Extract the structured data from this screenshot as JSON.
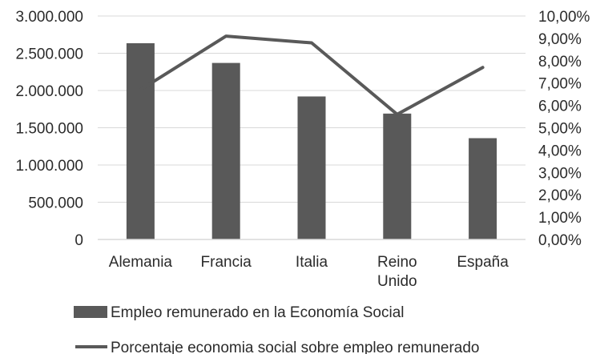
{
  "chart_data": {
    "type": "bar",
    "categories": [
      "Alemania",
      "Francia",
      "Italia",
      "Reino\nUnido",
      "España"
    ],
    "series": [
      {
        "name": "Empleo remunerado en la Economía Social",
        "type": "bar",
        "axis": "left",
        "values": [
          2635000,
          2370000,
          1920000,
          1690000,
          1360000
        ]
      },
      {
        "name": "Porcentaje economia social sobre empleo remunerado",
        "type": "line",
        "axis": "right",
        "values": [
          6.7,
          9.1,
          8.8,
          5.6,
          7.7
        ]
      }
    ],
    "y_left": {
      "lim": [
        0,
        3000000
      ],
      "ticks": [
        "0",
        "500.000",
        "1.000.000",
        "1.500.000",
        "2.000.000",
        "2.500.000",
        "3.000.000"
      ]
    },
    "y_right": {
      "lim": [
        0,
        10
      ],
      "ticks": [
        "0,00%",
        "1,00%",
        "2,00%",
        "3,00%",
        "4,00%",
        "5,00%",
        "6,00%",
        "7,00%",
        "8,00%",
        "9,00%",
        "10,00%"
      ]
    },
    "grid": "horizontal",
    "legend_position": "bottom",
    "colors": {
      "bar": "#595959",
      "line": "#595959",
      "grid": "#d9d9d9",
      "text": "#2b2b2b"
    }
  }
}
